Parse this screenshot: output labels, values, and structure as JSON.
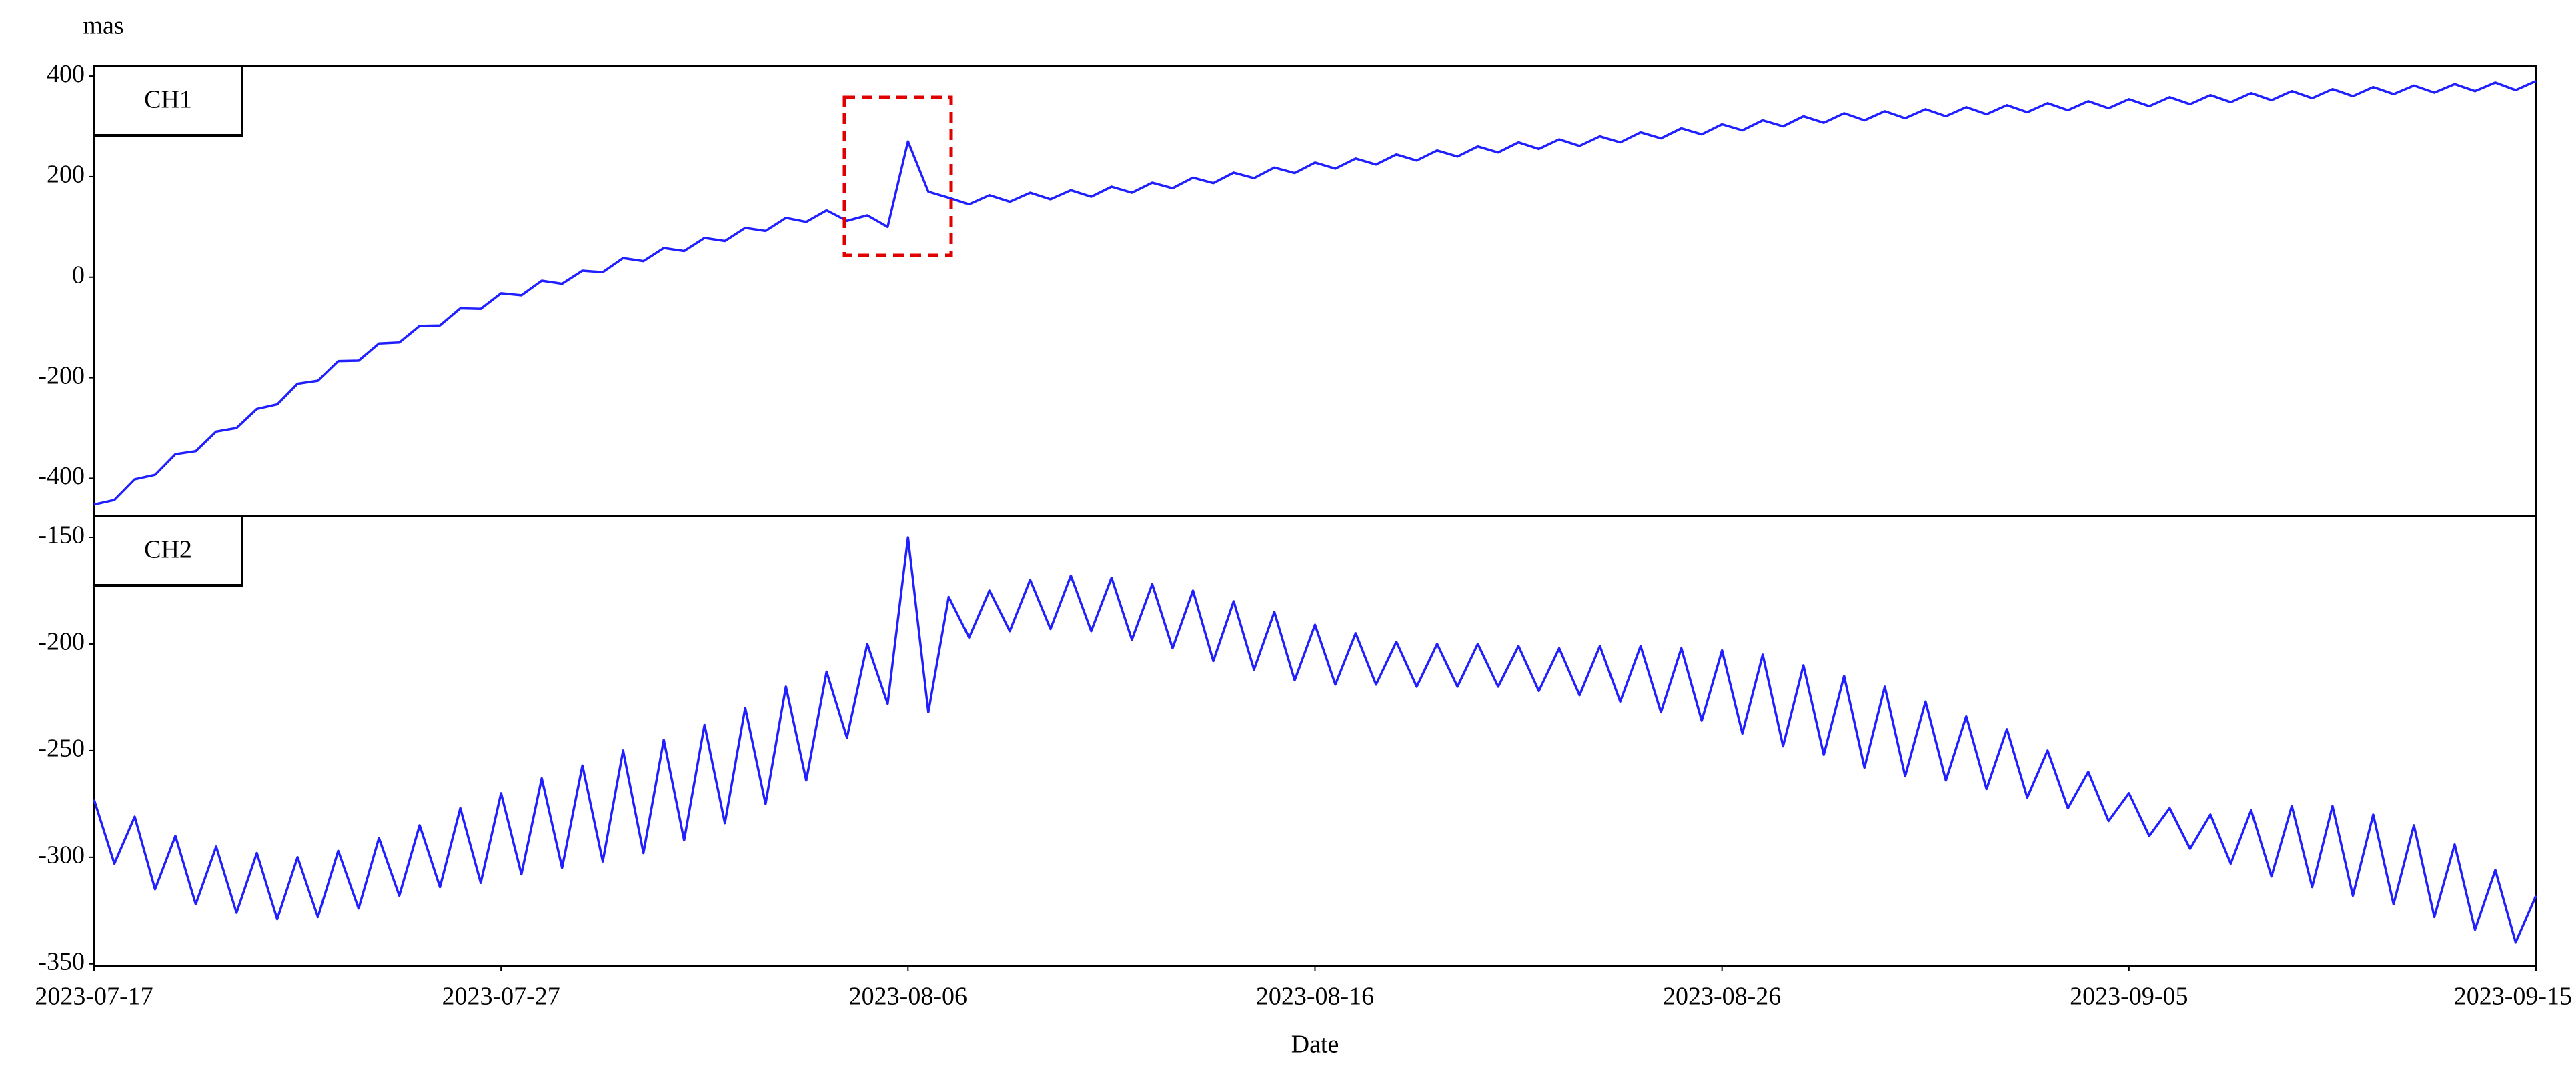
{
  "chart_data": [
    {
      "type": "line",
      "label": "CH1",
      "ylabel": "mas",
      "xlim": [
        "2023-07-17",
        "2023-09-15"
      ],
      "ylim": [
        -475,
        420
      ],
      "yticks": [
        -400,
        -200,
        0,
        200,
        400
      ],
      "x": [
        "2023-07-17T00:00",
        "2023-07-17T12:00",
        "2023-07-18T00:00",
        "2023-07-18T12:00",
        "2023-07-19T00:00",
        "2023-07-19T12:00",
        "2023-07-20T00:00",
        "2023-07-20T12:00",
        "2023-07-21T00:00",
        "2023-07-21T12:00",
        "2023-07-22T00:00",
        "2023-07-22T12:00",
        "2023-07-23T00:00",
        "2023-07-23T12:00",
        "2023-07-24T00:00",
        "2023-07-24T12:00",
        "2023-07-25T00:00",
        "2023-07-25T12:00",
        "2023-07-26T00:00",
        "2023-07-26T12:00",
        "2023-07-27T00:00",
        "2023-07-27T12:00",
        "2023-07-28T00:00",
        "2023-07-28T12:00",
        "2023-07-29T00:00",
        "2023-07-29T12:00",
        "2023-07-30T00:00",
        "2023-07-30T12:00",
        "2023-07-31T00:00",
        "2023-07-31T12:00",
        "2023-08-01T00:00",
        "2023-08-01T12:00",
        "2023-08-02T00:00",
        "2023-08-02T12:00",
        "2023-08-03T00:00",
        "2023-08-03T12:00",
        "2023-08-04T00:00",
        "2023-08-04T12:00",
        "2023-08-05T00:00",
        "2023-08-05T12:00",
        "2023-08-06T00:00",
        "2023-08-06T12:00",
        "2023-08-07T00:00",
        "2023-08-07T12:00",
        "2023-08-08T00:00",
        "2023-08-08T12:00",
        "2023-08-09T00:00",
        "2023-08-09T12:00",
        "2023-08-10T00:00",
        "2023-08-10T12:00",
        "2023-08-11T00:00",
        "2023-08-11T12:00",
        "2023-08-12T00:00",
        "2023-08-12T12:00",
        "2023-08-13T00:00",
        "2023-08-13T12:00",
        "2023-08-14T00:00",
        "2023-08-14T12:00",
        "2023-08-15T00:00",
        "2023-08-15T12:00",
        "2023-08-16T00:00",
        "2023-08-16T12:00",
        "2023-08-17T00:00",
        "2023-08-17T12:00",
        "2023-08-18T00:00",
        "2023-08-18T12:00",
        "2023-08-19T00:00",
        "2023-08-19T12:00",
        "2023-08-20T00:00",
        "2023-08-20T12:00",
        "2023-08-21T00:00",
        "2023-08-21T12:00",
        "2023-08-22T00:00",
        "2023-08-22T12:00",
        "2023-08-23T00:00",
        "2023-08-23T12:00",
        "2023-08-24T00:00",
        "2023-08-24T12:00",
        "2023-08-25T00:00",
        "2023-08-25T12:00",
        "2023-08-26T00:00",
        "2023-08-26T12:00",
        "2023-08-27T00:00",
        "2023-08-27T12:00",
        "2023-08-28T00:00",
        "2023-08-28T12:00",
        "2023-08-29T00:00",
        "2023-08-29T12:00",
        "2023-08-30T00:00",
        "2023-08-30T12:00",
        "2023-08-31T00:00",
        "2023-08-31T12:00",
        "2023-09-01T00:00",
        "2023-09-01T12:00",
        "2023-09-02T00:00",
        "2023-09-02T12:00",
        "2023-09-03T00:00",
        "2023-09-03T12:00",
        "2023-09-04T00:00",
        "2023-09-04T12:00",
        "2023-09-05T00:00",
        "2023-09-05T12:00",
        "2023-09-06T00:00",
        "2023-09-06T12:00",
        "2023-09-07T00:00",
        "2023-09-07T12:00",
        "2023-09-08T00:00",
        "2023-09-08T12:00",
        "2023-09-09T00:00",
        "2023-09-09T12:00",
        "2023-09-10T00:00",
        "2023-09-10T12:00",
        "2023-09-11T00:00",
        "2023-09-11T12:00",
        "2023-09-12T00:00",
        "2023-09-12T12:00",
        "2023-09-13T00:00",
        "2023-09-13T12:00",
        "2023-09-14T00:00",
        "2023-09-14T12:00",
        "2023-09-15T00:00"
      ],
      "series": [
        {
          "color": "#1f1fff",
          "values": [
            -452,
            -443,
            -402,
            -393,
            -352,
            -346,
            -307,
            -300,
            -262,
            -253,
            -212,
            -206,
            -167,
            -166,
            -132,
            -130,
            -97,
            -96,
            -62,
            -63,
            -32,
            -36,
            -7,
            -13,
            13,
            10,
            38,
            32,
            58,
            52,
            78,
            72,
            98,
            92,
            118,
            110,
            133,
            112,
            123,
            100,
            270,
            170,
            158,
            145,
            163,
            150,
            168,
            155,
            173,
            160,
            180,
            168,
            188,
            177,
            198,
            187,
            208,
            197,
            218,
            207,
            228,
            216,
            236,
            224,
            244,
            232,
            252,
            240,
            260,
            248,
            268,
            255,
            274,
            261,
            280,
            268,
            288,
            276,
            296,
            284,
            304,
            292,
            312,
            300,
            320,
            307,
            326,
            312,
            330,
            316,
            334,
            320,
            338,
            324,
            342,
            328,
            346,
            332,
            350,
            336,
            354,
            340,
            358,
            344,
            362,
            348,
            366,
            352,
            370,
            356,
            374,
            360,
            378,
            364,
            381,
            367,
            384,
            370,
            387,
            372,
            390
          ]
        }
      ]
    },
    {
      "type": "line",
      "label": "CH2",
      "xlabel": "Date",
      "xlim": [
        "2023-07-17",
        "2023-09-15"
      ],
      "xticks": [
        "2023-07-17",
        "2023-07-27",
        "2023-08-06",
        "2023-08-16",
        "2023-08-26",
        "2023-09-05",
        "2023-09-15"
      ],
      "ylim": [
        -351,
        -140
      ],
      "yticks": [
        -350,
        -300,
        -250,
        -200,
        -150
      ],
      "x": [
        "2023-07-17T00:00",
        "2023-07-17T12:00",
        "2023-07-18T00:00",
        "2023-07-18T12:00",
        "2023-07-19T00:00",
        "2023-07-19T12:00",
        "2023-07-20T00:00",
        "2023-07-20T12:00",
        "2023-07-21T00:00",
        "2023-07-21T12:00",
        "2023-07-22T00:00",
        "2023-07-22T12:00",
        "2023-07-23T00:00",
        "2023-07-23T12:00",
        "2023-07-24T00:00",
        "2023-07-24T12:00",
        "2023-07-25T00:00",
        "2023-07-25T12:00",
        "2023-07-26T00:00",
        "2023-07-26T12:00",
        "2023-07-27T00:00",
        "2023-07-27T12:00",
        "2023-07-28T00:00",
        "2023-07-28T12:00",
        "2023-07-29T00:00",
        "2023-07-29T12:00",
        "2023-07-30T00:00",
        "2023-07-30T12:00",
        "2023-07-31T00:00",
        "2023-07-31T12:00",
        "2023-08-01T00:00",
        "2023-08-01T12:00",
        "2023-08-02T00:00",
        "2023-08-02T12:00",
        "2023-08-03T00:00",
        "2023-08-03T12:00",
        "2023-08-04T00:00",
        "2023-08-04T12:00",
        "2023-08-05T00:00",
        "2023-08-05T12:00",
        "2023-08-06T00:00",
        "2023-08-06T12:00",
        "2023-08-07T00:00",
        "2023-08-07T12:00",
        "2023-08-08T00:00",
        "2023-08-08T12:00",
        "2023-08-09T00:00",
        "2023-08-09T12:00",
        "2023-08-10T00:00",
        "2023-08-10T12:00",
        "2023-08-11T00:00",
        "2023-08-11T12:00",
        "2023-08-12T00:00",
        "2023-08-12T12:00",
        "2023-08-13T00:00",
        "2023-08-13T12:00",
        "2023-08-14T00:00",
        "2023-08-14T12:00",
        "2023-08-15T00:00",
        "2023-08-15T12:00",
        "2023-08-16T00:00",
        "2023-08-16T12:00",
        "2023-08-17T00:00",
        "2023-08-17T12:00",
        "2023-08-18T00:00",
        "2023-08-18T12:00",
        "2023-08-19T00:00",
        "2023-08-19T12:00",
        "2023-08-20T00:00",
        "2023-08-20T12:00",
        "2023-08-21T00:00",
        "2023-08-21T12:00",
        "2023-08-22T00:00",
        "2023-08-22T12:00",
        "2023-08-23T00:00",
        "2023-08-23T12:00",
        "2023-08-24T00:00",
        "2023-08-24T12:00",
        "2023-08-25T00:00",
        "2023-08-25T12:00",
        "2023-08-26T00:00",
        "2023-08-26T12:00",
        "2023-08-27T00:00",
        "2023-08-27T12:00",
        "2023-08-28T00:00",
        "2023-08-28T12:00",
        "2023-08-29T00:00",
        "2023-08-29T12:00",
        "2023-08-30T00:00",
        "2023-08-30T12:00",
        "2023-08-31T00:00",
        "2023-08-31T12:00",
        "2023-09-01T00:00",
        "2023-09-01T12:00",
        "2023-09-02T00:00",
        "2023-09-02T12:00",
        "2023-09-03T00:00",
        "2023-09-03T12:00",
        "2023-09-04T00:00",
        "2023-09-04T12:00",
        "2023-09-05T00:00",
        "2023-09-05T12:00",
        "2023-09-06T00:00",
        "2023-09-06T12:00",
        "2023-09-07T00:00",
        "2023-09-07T12:00",
        "2023-09-08T00:00",
        "2023-09-08T12:00",
        "2023-09-09T00:00",
        "2023-09-09T12:00",
        "2023-09-10T00:00",
        "2023-09-10T12:00",
        "2023-09-11T00:00",
        "2023-09-11T12:00",
        "2023-09-12T00:00",
        "2023-09-12T12:00",
        "2023-09-13T00:00",
        "2023-09-13T12:00",
        "2023-09-14T00:00",
        "2023-09-14T12:00",
        "2023-09-15T00:00"
      ],
      "series": [
        {
          "color": "#1f1fff",
          "values": [
            -273,
            -303,
            -281,
            -315,
            -290,
            -322,
            -295,
            -326,
            -298,
            -329,
            -300,
            -328,
            -297,
            -324,
            -291,
            -318,
            -285,
            -314,
            -277,
            -312,
            -270,
            -308,
            -263,
            -305,
            -257,
            -302,
            -250,
            -298,
            -245,
            -292,
            -238,
            -284,
            -230,
            -275,
            -220,
            -264,
            -213,
            -244,
            -200,
            -228,
            -150,
            -232,
            -178,
            -197,
            -175,
            -194,
            -170,
            -193,
            -168,
            -194,
            -169,
            -198,
            -172,
            -202,
            -175,
            -208,
            -180,
            -212,
            -185,
            -217,
            -191,
            -219,
            -195,
            -219,
            -199,
            -220,
            -200,
            -220,
            -200,
            -220,
            -201,
            -222,
            -202,
            -224,
            -201,
            -227,
            -201,
            -232,
            -202,
            -236,
            -203,
            -242,
            -205,
            -248,
            -210,
            -252,
            -215,
            -258,
            -220,
            -262,
            -227,
            -264,
            -234,
            -268,
            -240,
            -272,
            -250,
            -277,
            -260,
            -283,
            -270,
            -290,
            -277,
            -296,
            -280,
            -303,
            -278,
            -309,
            -276,
            -314,
            -276,
            -318,
            -280,
            -322,
            -285,
            -328,
            -294,
            -334,
            -306,
            -340,
            -318
          ]
        }
      ]
    }
  ]
}
